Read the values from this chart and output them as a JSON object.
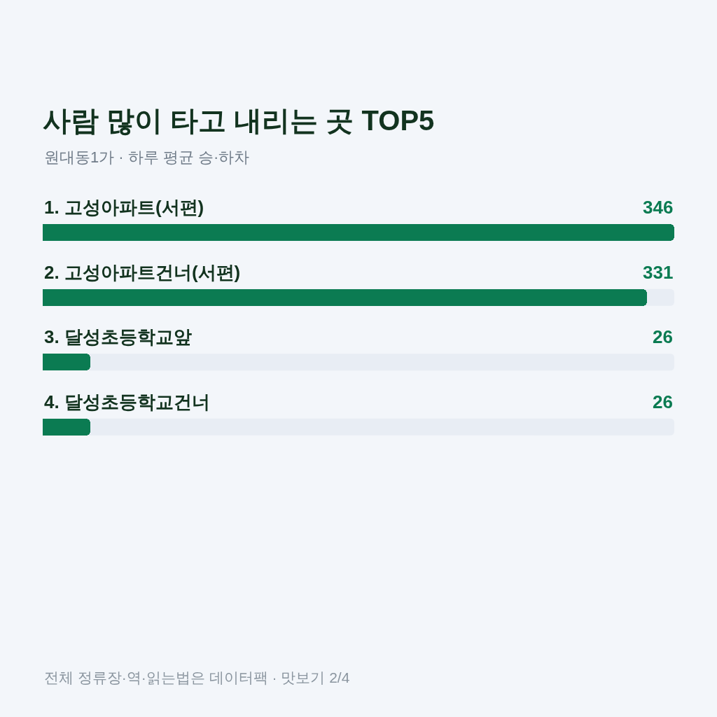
{
  "chart_data": {
    "type": "bar",
    "orientation": "horizontal",
    "title": "사람 많이 타고 내리는 곳 TOP5",
    "subtitle": "원대동1가 · 하루 평균 승·하차",
    "categories": [
      "1. 고성아파트(서편)",
      "2. 고성아파트건너(서편)",
      "3. 달성초등학교앞",
      "4. 달성초등학교건너"
    ],
    "values": [
      346,
      331,
      26,
      26
    ],
    "color": "#0b7b52",
    "data_labels": true,
    "annotations": [
      "전체 정류장·역·읽는법은 데이터팩 · 맛보기 2/4"
    ]
  }
}
